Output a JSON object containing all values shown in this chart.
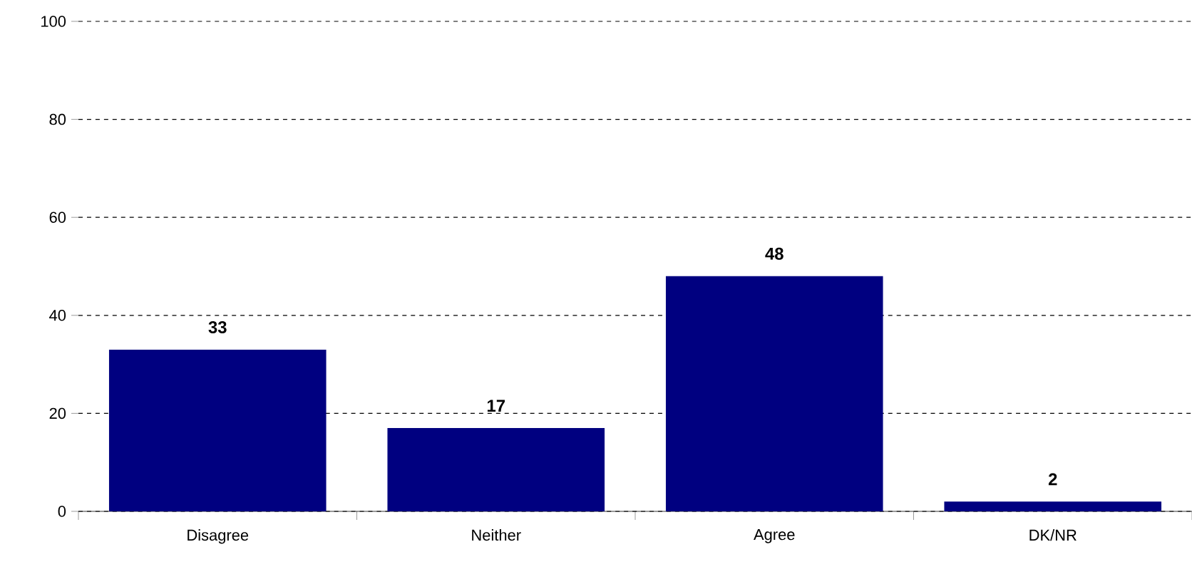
{
  "chart_data": {
    "type": "bar",
    "categories": [
      "Disagree",
      "Neither",
      "Agree",
      "DK/NR"
    ],
    "values": [
      33,
      17,
      48,
      2
    ],
    "color": "#000080",
    "ylim": [
      0,
      100
    ],
    "yticks": [
      0,
      20,
      40,
      60,
      80,
      100
    ],
    "grid": "y",
    "data_labels": true
  }
}
